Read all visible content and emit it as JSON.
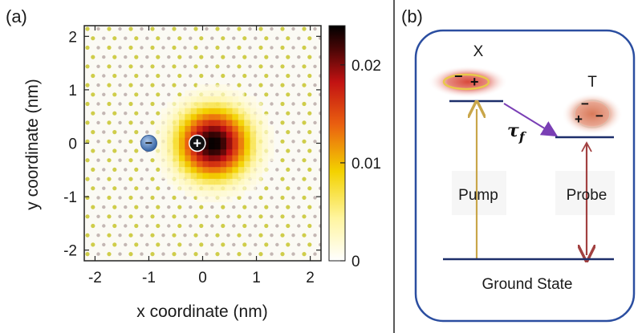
{
  "panel_a": {
    "label": "(a)",
    "xlabel": "x coordinate (nm)",
    "ylabel": "y coordinate (nm)",
    "colorbar": {
      "ticks": [
        "0",
        "0.01",
        "0.02"
      ],
      "min": 0,
      "max": 0.024
    }
  },
  "panel_b": {
    "label": "(b)",
    "level_x_label": "X",
    "level_t_label": "T",
    "tau_label": "τ",
    "tau_sub": "f",
    "pump_label": "Pump",
    "probe_label": "Probe",
    "ground_label": "Ground State",
    "plus_sign": "+",
    "minus_sign": "−"
  },
  "colors": {
    "frame_blue": "#2b4ea0",
    "level_navy": "#1d2f6b",
    "pump_arrow": "#c9a64a",
    "probe_arrow": "#a24141",
    "transfer_arrow": "#7a3fb5",
    "electron_blue": "#5b87c1"
  },
  "chart_data": {
    "type": "heatmap",
    "xlim": [
      -2.2,
      2.2
    ],
    "ylim": [
      -2.2,
      2.2
    ],
    "x_ticks": [
      -2,
      -1,
      0,
      1,
      2
    ],
    "y_ticks": [
      -2,
      -1,
      0,
      1,
      2
    ],
    "colorbar_range": [
      0,
      0.024
    ],
    "colorbar_ticks": [
      0,
      0.01,
      0.02
    ],
    "peak": {
      "x": 0.2,
      "y": 0.0,
      "value": 0.024
    },
    "hole_marker": {
      "x": -0.1,
      "y": 0.0,
      "sign": "+"
    },
    "electron_marker": {
      "x": -1.0,
      "y": 0.0,
      "sign": "−"
    }
  }
}
